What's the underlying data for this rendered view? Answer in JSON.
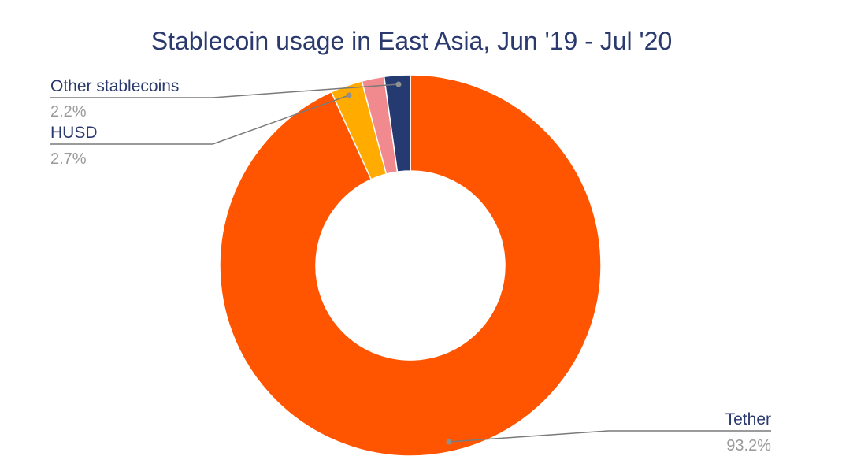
{
  "chart_data": {
    "type": "pie",
    "donut": true,
    "title": "Stablecoin usage in East Asia, Jun '19 - Jul '20",
    "slices": [
      {
        "name": "Tether",
        "value": 93.2,
        "label": "93.2%",
        "color": "#ff5500"
      },
      {
        "name": "HUSD",
        "value": 2.7,
        "label": "2.7%",
        "color": "#ffab00"
      },
      {
        "name": "",
        "value": 1.9,
        "label": "",
        "color": "#f08a8e"
      },
      {
        "name": "Other stablecoins",
        "value": 2.2,
        "label": "2.2%",
        "color": "#263a72"
      }
    ]
  }
}
